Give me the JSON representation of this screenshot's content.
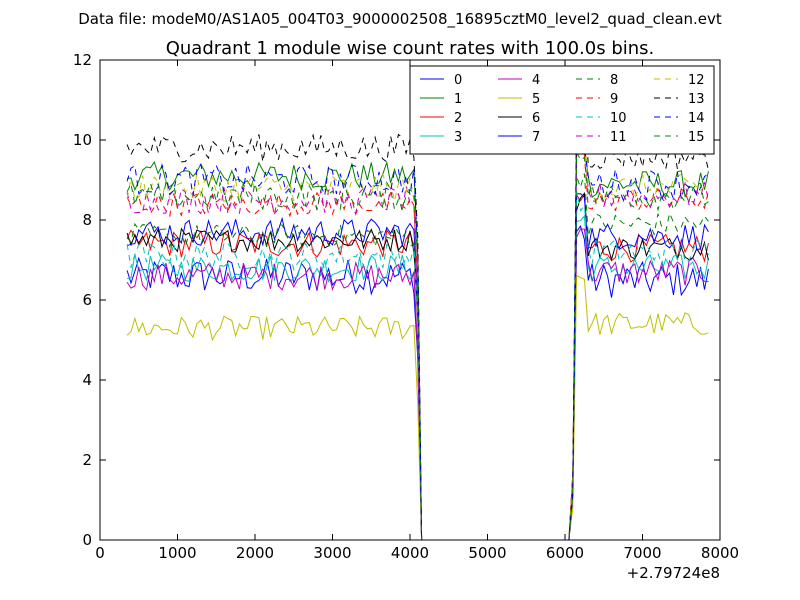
{
  "chart_data": {
    "type": "line",
    "suptitle": "Data file: modeM0/AS1A05_004T03_9000002508_16895cztM0_level2_quad_clean.evt",
    "title": "Quadrant 1 module wise count rates with 100.0s bins.",
    "xlabel": "",
    "ylabel": "",
    "x_offset_label": "+2.79724e8",
    "xlim": [
      0,
      8000
    ],
    "ylim": [
      0,
      12
    ],
    "xticks": [
      0,
      1000,
      2000,
      3000,
      4000,
      5000,
      6000,
      7000,
      8000
    ],
    "yticks": [
      0,
      2,
      4,
      6,
      8,
      10,
      12
    ],
    "grid": false,
    "legend": {
      "placement": "top-right",
      "columns": 4
    },
    "segments": [
      {
        "x_start": 350,
        "x_end": 4050,
        "step": 50
      },
      {
        "x_start": 6150,
        "x_end": 7850,
        "step": 50
      }
    ],
    "gap_points": [
      [
        4100,
        5.5
      ],
      [
        4150,
        0
      ],
      [
        6050,
        0
      ],
      [
        6100,
        1.2
      ]
    ],
    "series": [
      {
        "name": "0",
        "color": "#0000ff",
        "dash": "solid",
        "level1": 6.6,
        "level2": 6.5,
        "amp": 0.45
      },
      {
        "name": "1",
        "color": "#008000",
        "dash": "solid",
        "level1": 9.1,
        "level2": 8.9,
        "amp": 0.35
      },
      {
        "name": "2",
        "color": "#ff0000",
        "dash": "solid",
        "level1": 7.4,
        "level2": 7.3,
        "amp": 0.35
      },
      {
        "name": "3",
        "color": "#00bfbf",
        "dash": "solid",
        "level1": 6.8,
        "level2": 6.8,
        "amp": 0.35
      },
      {
        "name": "4",
        "color": "#bf00bf",
        "dash": "solid",
        "level1": 6.6,
        "level2": 6.7,
        "amp": 0.35
      },
      {
        "name": "5",
        "color": "#bfbf00",
        "dash": "solid",
        "level1": 5.3,
        "level2": 5.4,
        "amp": 0.3
      },
      {
        "name": "6",
        "color": "#000000",
        "dash": "solid",
        "level1": 7.5,
        "level2": 7.3,
        "amp": 0.3
      },
      {
        "name": "7",
        "color": "#0000ff",
        "dash": "solid",
        "level1": 7.7,
        "level2": 7.6,
        "amp": 0.35
      },
      {
        "name": "8",
        "color": "#008000",
        "dash": "dashed",
        "level1": 7.6,
        "level2": 7.9,
        "amp": 0.3
      },
      {
        "name": "9",
        "color": "#ff0000",
        "dash": "dashed",
        "level1": 8.4,
        "level2": 8.5,
        "amp": 0.3
      },
      {
        "name": "10",
        "color": "#00bfbf",
        "dash": "dashed",
        "level1": 7.1,
        "level2": 7.2,
        "amp": 0.35
      },
      {
        "name": "11",
        "color": "#bf00bf",
        "dash": "dashed",
        "level1": 8.5,
        "level2": 8.6,
        "amp": 0.35
      },
      {
        "name": "12",
        "color": "#bfbf00",
        "dash": "dashed",
        "level1": 8.8,
        "level2": 8.8,
        "amp": 0.35
      },
      {
        "name": "13",
        "color": "#000000",
        "dash": "dashed",
        "level1": 9.8,
        "level2": 9.6,
        "amp": 0.35
      },
      {
        "name": "14",
        "color": "#0000ff",
        "dash": "dashed",
        "level1": 9.0,
        "level2": 8.9,
        "amp": 0.4
      },
      {
        "name": "15",
        "color": "#008000",
        "dash": "dashed",
        "level1": 8.6,
        "level2": 8.6,
        "amp": 0.35
      }
    ]
  }
}
